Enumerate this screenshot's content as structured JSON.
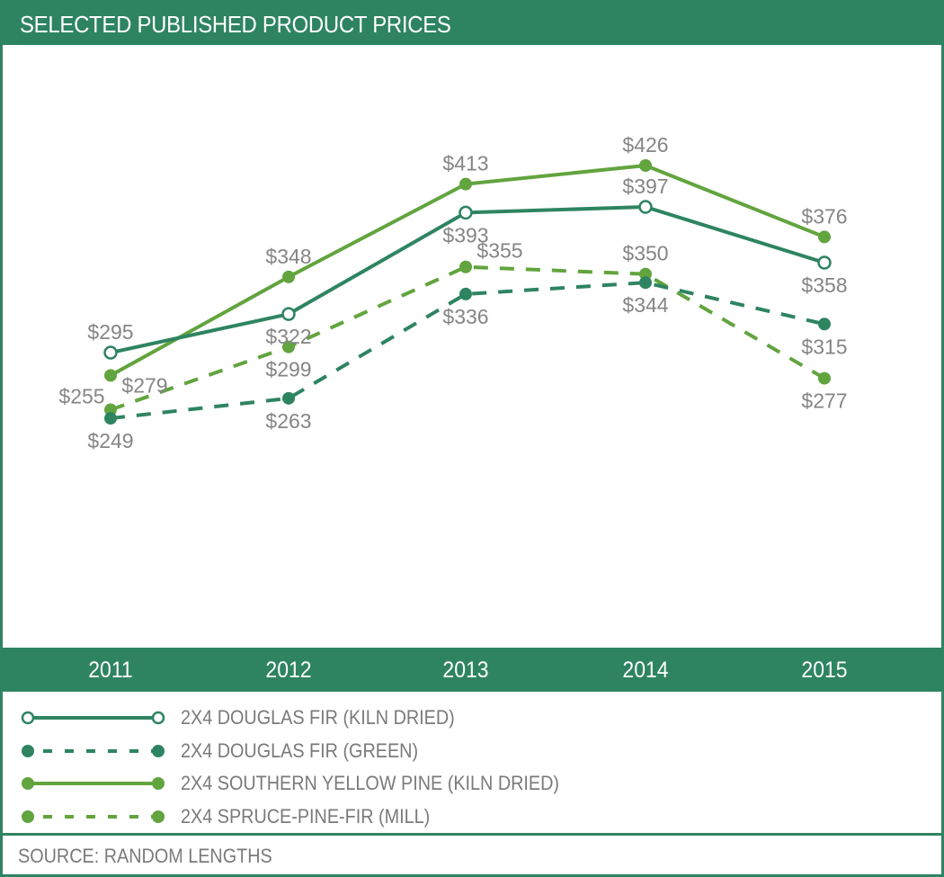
{
  "colors": {
    "dark_green": "#2e8461",
    "light_green": "#62a43e",
    "label_gray": "#858585",
    "text_gray": "#7a7a7a",
    "header_text": "#ffffff"
  },
  "chart_data": {
    "type": "line",
    "title": "SELECTED PUBLISHED PRODUCT PRICES",
    "xlabel": "",
    "ylabel": "",
    "x": [
      "2011",
      "2012",
      "2013",
      "2014",
      "2015"
    ],
    "ylim": [
      200,
      450
    ],
    "grid": false,
    "legend_position": "bottom",
    "series": [
      {
        "name": "2X4 DOUGLAS FIR (KILN DRIED)",
        "values": [
          295,
          322,
          393,
          397,
          358
        ],
        "labels": [
          "$295",
          "$322",
          "$393",
          "$397",
          "$358"
        ],
        "color": "#2e8461",
        "line_style": "solid",
        "marker": "open-circle",
        "label_side": [
          "above",
          "below",
          "below",
          "above",
          "below"
        ]
      },
      {
        "name": "2X4 DOUGLAS FIR (GREEN)",
        "values": [
          249,
          263,
          336,
          344,
          315
        ],
        "labels": [
          "$249",
          "$263",
          "$336",
          "$344",
          "$315"
        ],
        "color": "#2e8461",
        "line_style": "dashed",
        "marker": "filled-circle",
        "label_side": [
          "below",
          "below",
          "below",
          "below",
          "below"
        ]
      },
      {
        "name": "2X4 SOUTHERN YELLOW PINE (KILN DRIED)",
        "values": [
          279,
          348,
          413,
          426,
          376
        ],
        "labels": [
          "$279",
          "$348",
          "$413",
          "$426",
          "$376"
        ],
        "color": "#62a43e",
        "line_style": "solid",
        "marker": "filled-circle",
        "label_side": [
          "below-right",
          "above",
          "above",
          "above",
          "above"
        ]
      },
      {
        "name": "2X4 SPRUCE-PINE-FIR (MILL)",
        "values": [
          255,
          299,
          355,
          350,
          277
        ],
        "labels": [
          "$255",
          "$299",
          "$355",
          "$350",
          "$277"
        ],
        "color": "#62a43e",
        "line_style": "dashed",
        "marker": "filled-circle",
        "label_side": [
          "above-left",
          "below",
          "above-right",
          "above",
          "below"
        ]
      }
    ]
  },
  "source": "SOURCE: RANDOM LENGTHS"
}
